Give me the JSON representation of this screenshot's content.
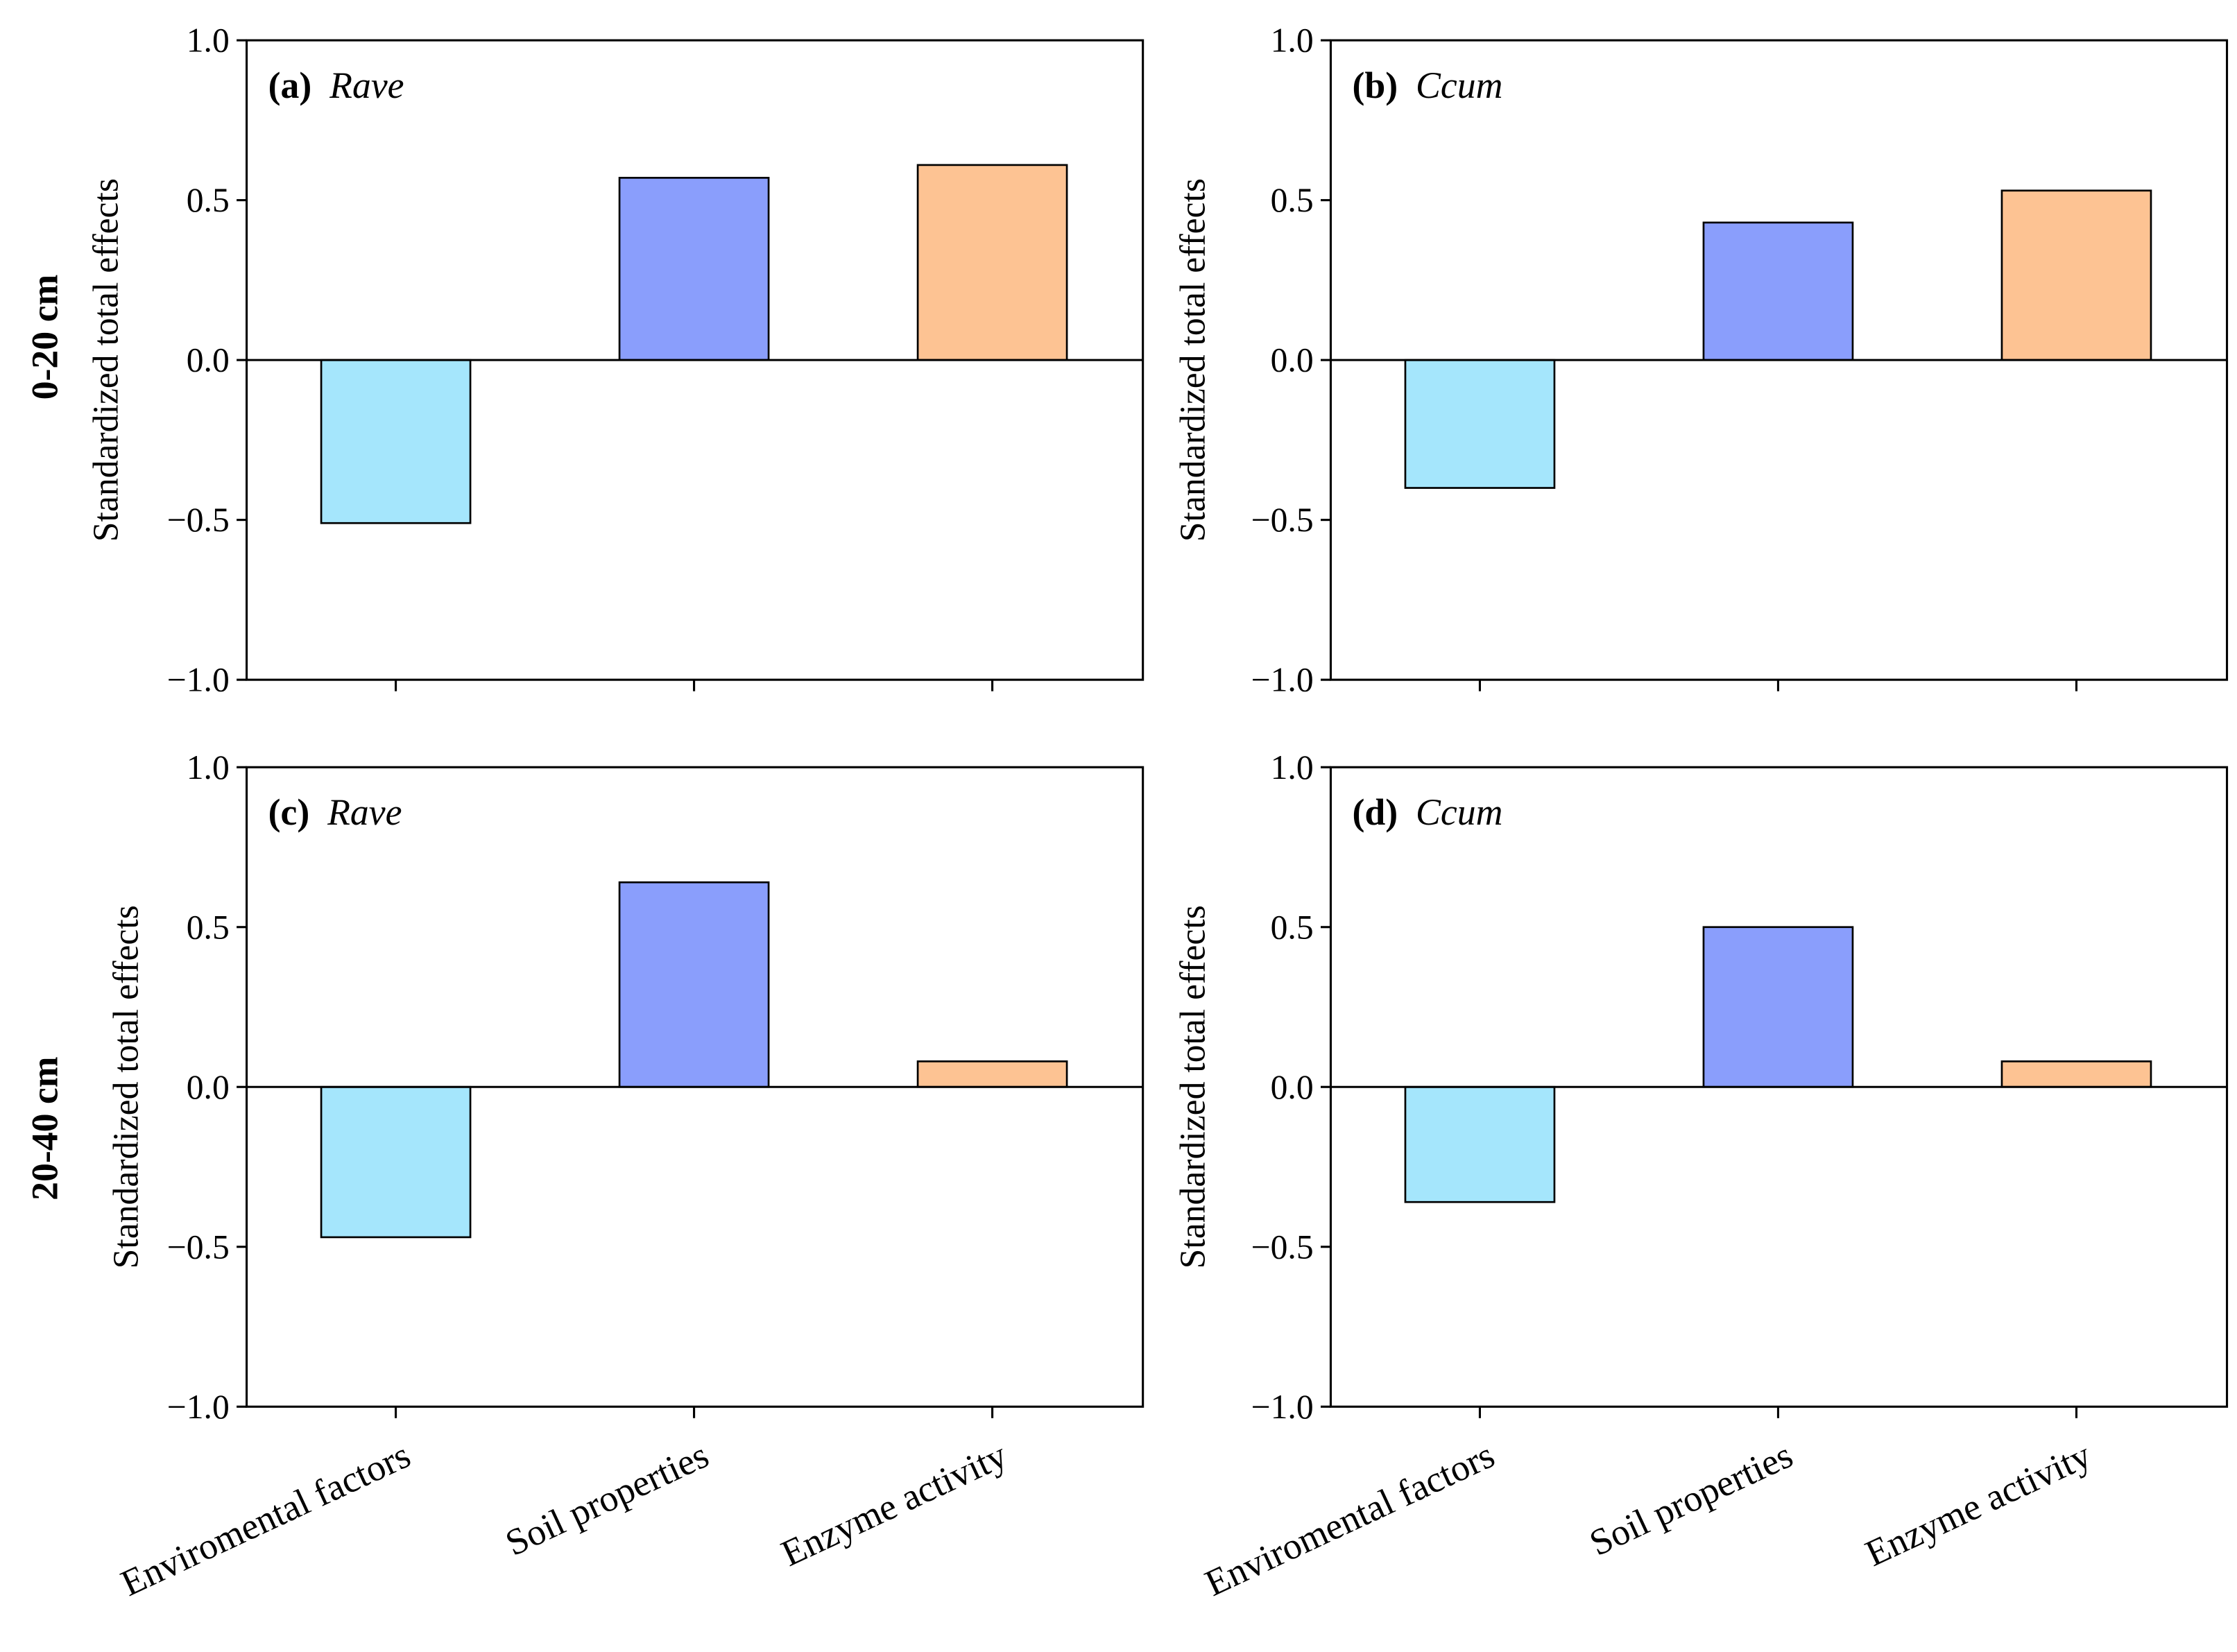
{
  "colors": {
    "Enviromental factors": "#A5E6FC",
    "Soil properties": "#8A9EFC",
    "Enzyme activity": "#FDC393"
  },
  "row_labels": [
    "0-20 cm",
    "20-40 cm"
  ],
  "chart_data": [
    {
      "type": "bar",
      "panel": "(a)",
      "species": "Rave",
      "ylabel": "Standardized total effects",
      "ylim": [
        -1,
        1
      ],
      "yticks": [
        "1.0",
        "0.5",
        "0.0",
        "−0.5",
        "−1.0"
      ],
      "categories": [
        "Enviromental factors",
        "Soil properties",
        "Enzyme activity"
      ],
      "values": [
        -0.51,
        0.57,
        0.61
      ]
    },
    {
      "type": "bar",
      "panel": "(b)",
      "species": "Ccum",
      "ylabel": "Standardized total effects",
      "ylim": [
        -1,
        1
      ],
      "yticks": [
        "1.0",
        "0.5",
        "0.0",
        "−0.5",
        "−1.0"
      ],
      "categories": [
        "Enviromental factors",
        "Soil properties",
        "Enzyme activity"
      ],
      "values": [
        -0.4,
        0.43,
        0.53
      ]
    },
    {
      "type": "bar",
      "panel": "(c)",
      "species": "Rave",
      "ylabel": "Standardized total effects",
      "ylim": [
        -1,
        1
      ],
      "yticks": [
        "1.0",
        "0.5",
        "0.0",
        "−0.5",
        "−1.0"
      ],
      "categories": [
        "Enviromental factors",
        "Soil properties",
        "Enzyme activity"
      ],
      "values": [
        -0.47,
        0.64,
        0.08
      ]
    },
    {
      "type": "bar",
      "panel": "(d)",
      "species": "Ccum",
      "ylabel": "Standardized total effects",
      "ylim": [
        -1,
        1
      ],
      "yticks": [
        "1.0",
        "0.5",
        "0.0",
        "−0.5",
        "−1.0"
      ],
      "categories": [
        "Enviromental factors",
        "Soil properties",
        "Enzyme activity"
      ],
      "values": [
        -0.36,
        0.5,
        0.08
      ]
    }
  ]
}
